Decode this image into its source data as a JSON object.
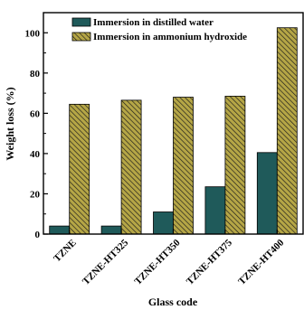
{
  "chart_data": {
    "type": "bar",
    "categories": [
      "TZNE",
      "TZNE-HT325",
      "TZNE-HT350",
      "TZNE-HT375",
      "TZNE-HT400"
    ],
    "series": [
      {
        "name": "Immersion in distilled water",
        "values": [
          4,
          4,
          11,
          23.5,
          40.5
        ],
        "color": "#1f5a5a",
        "pattern": "solid"
      },
      {
        "name": "Immersion in ammonium hydroxide",
        "values": [
          64.5,
          66.5,
          68,
          68.5,
          102.5
        ],
        "color": "#b5a646",
        "pattern": "diagonal-hatch"
      }
    ],
    "xlabel": "Glass code",
    "ylabel": "Weight loss (%)",
    "ylim": [
      0,
      110
    ],
    "yticks": [
      0,
      20,
      40,
      60,
      80,
      100
    ],
    "legend_position": "top-left",
    "grid": false
  }
}
